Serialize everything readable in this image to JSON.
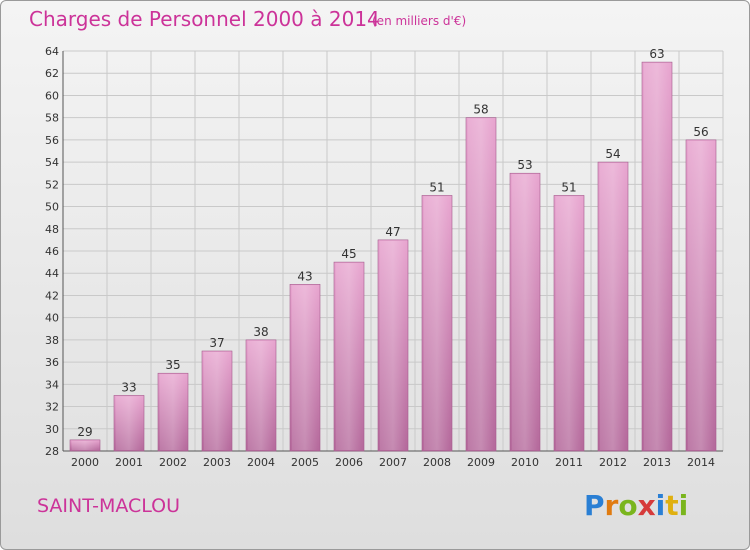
{
  "header": {
    "title": "Charges de Personnel 2000 à 2014",
    "subtitle": "(en milliers d'€)"
  },
  "footer": {
    "city": "SAINT-MACLOU",
    "logo_text": "Proxiti"
  },
  "colors": {
    "accent": "#cc3399",
    "bar_light": "#e8a6d0",
    "bar_dark": "#b56a9c",
    "logo": [
      "#2a7fd4",
      "#e07b10",
      "#7ab51d",
      "#d63a3a",
      "#2a7fd4",
      "#e0b010",
      "#7ab51d"
    ]
  },
  "chart_data": {
    "type": "bar",
    "categories": [
      "2000",
      "2001",
      "2002",
      "2003",
      "2004",
      "2005",
      "2006",
      "2007",
      "2008",
      "2009",
      "2010",
      "2011",
      "2012",
      "2013",
      "2014"
    ],
    "values": [
      29,
      33,
      35,
      37,
      38,
      43,
      45,
      47,
      51,
      58,
      53,
      51,
      54,
      63,
      56
    ],
    "title": "Charges de Personnel 2000 à 2014",
    "ylim": [
      28,
      64
    ],
    "yticks": [
      28,
      30,
      32,
      34,
      36,
      38,
      40,
      42,
      44,
      46,
      48,
      50,
      52,
      54,
      56,
      58,
      60,
      62,
      64
    ],
    "grid": true,
    "data_labels": true
  }
}
